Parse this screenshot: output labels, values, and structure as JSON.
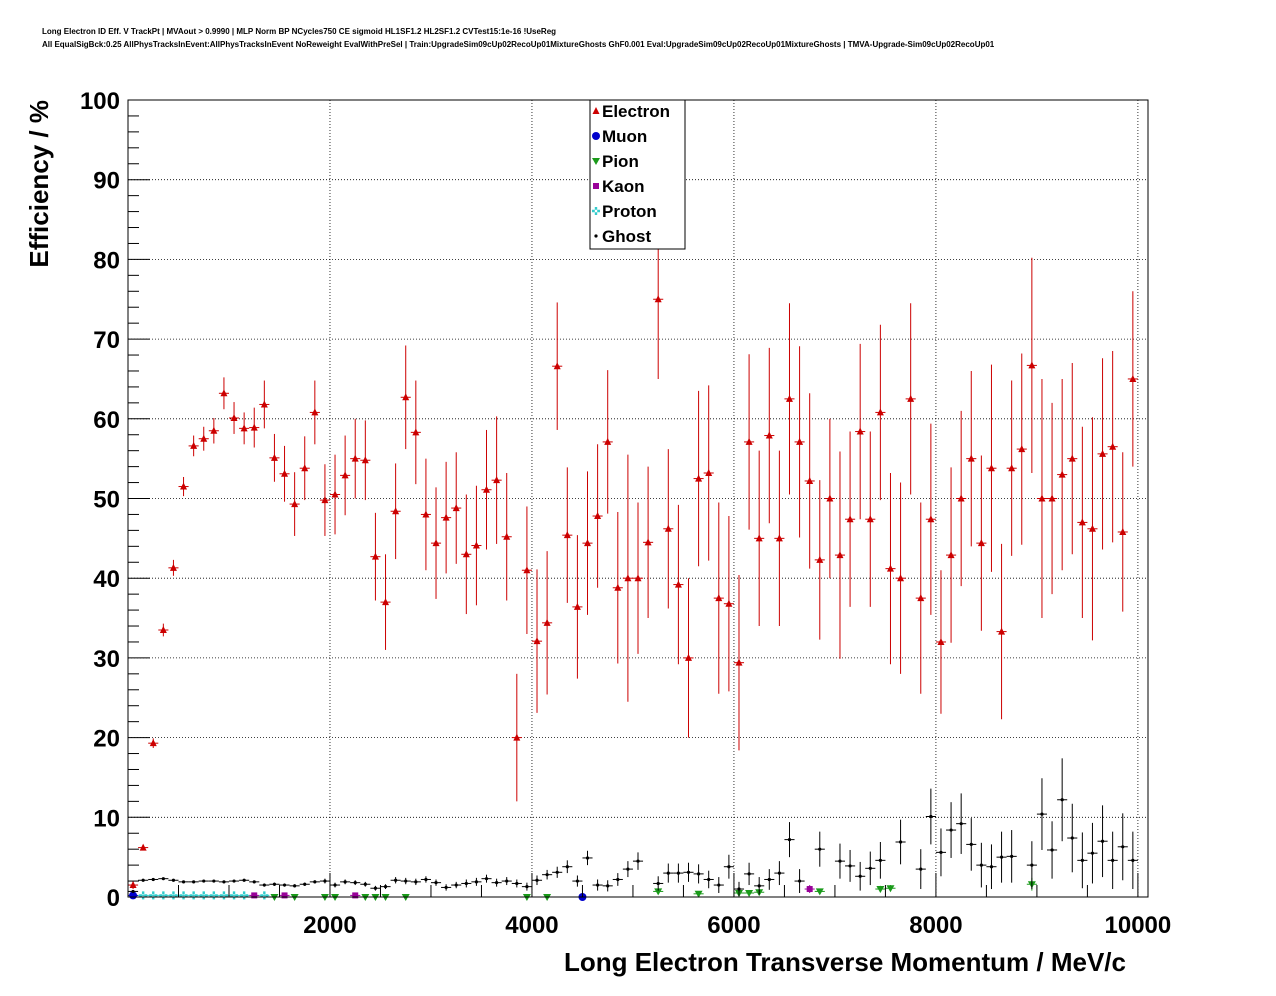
{
  "chart_data": {
    "type": "scatter",
    "title": "Long Electron ID Eff. V TrackPt | MVAout > 0.9990 | MLP Norm BP NCycles750 CE sigmoid HL1SF1.2 HL2SF1.2 CVTest15:1e-16 !UseReg",
    "subtitle": "All EqualSigBck:0.25 AllPhysTracksInEvent:AllPhysTracksInEvent NoReweight EvalWithPreSel | Train:UpgradeSim09cUp02RecoUp01MixtureGhosts GhF0.001 Eval:UpgradeSim09cUp02RecoUp01MixtureGhosts | TMVA-Upgrade-Sim09cUp02RecoUp01",
    "xlabel": "Long Electron Transverse Momentum / MeV/c",
    "ylabel": "Efficiency / %",
    "xlim": [
      0,
      10100
    ],
    "ylim": [
      0,
      100
    ],
    "x_ticks": [
      "2000",
      "4000",
      "6000",
      "8000",
      "10000"
    ],
    "y_ticks": [
      "0",
      "10",
      "20",
      "30",
      "40",
      "50",
      "60",
      "70",
      "80",
      "90",
      "100"
    ],
    "grid": true,
    "legend_position": "top-center",
    "bin_halfwidth": 50,
    "series": [
      {
        "name": "Electron",
        "color": "#cc0000",
        "marker": "triangle-up",
        "points": [
          [
            50,
            1.5,
            0.5
          ],
          [
            150,
            6.2,
            0.3
          ],
          [
            250,
            19.3,
            0.6
          ],
          [
            350,
            33.5,
            0.8
          ],
          [
            450,
            41.3,
            1.0
          ],
          [
            550,
            51.5,
            1.2
          ],
          [
            650,
            56.6,
            1.3
          ],
          [
            750,
            57.5,
            1.5
          ],
          [
            850,
            58.5,
            1.6
          ],
          [
            950,
            63.2,
            2.0
          ],
          [
            1050,
            60.1,
            2.0
          ],
          [
            1150,
            58.8,
            2.0
          ],
          [
            1250,
            58.9,
            2.5
          ],
          [
            1350,
            61.8,
            3.0
          ],
          [
            1450,
            55.1,
            3.0
          ],
          [
            1550,
            53.1,
            3.5
          ],
          [
            1650,
            49.3,
            4.0
          ],
          [
            1750,
            53.8,
            4.0
          ],
          [
            1850,
            60.8,
            4.0
          ],
          [
            1950,
            49.8,
            4.5
          ],
          [
            2050,
            50.5,
            5.0
          ],
          [
            2150,
            52.9,
            5.0
          ],
          [
            2250,
            55.0,
            5.0
          ],
          [
            2350,
            54.8,
            5.0
          ],
          [
            2450,
            42.7,
            5.5
          ],
          [
            2550,
            37.0,
            6.0
          ],
          [
            2650,
            48.4,
            6.0
          ],
          [
            2750,
            62.7,
            6.5
          ],
          [
            2850,
            58.3,
            6.5
          ],
          [
            2950,
            48.0,
            7.0
          ],
          [
            3050,
            44.4,
            7.0
          ],
          [
            3150,
            47.6,
            7.0
          ],
          [
            3250,
            48.8,
            7.0
          ],
          [
            3350,
            43.0,
            7.5
          ],
          [
            3450,
            44.1,
            7.5
          ],
          [
            3550,
            51.1,
            7.5
          ],
          [
            3650,
            52.3,
            8.0
          ],
          [
            3750,
            45.2,
            8.0
          ],
          [
            3850,
            20.0,
            8.0
          ],
          [
            3950,
            41.0,
            8.0
          ],
          [
            4050,
            32.1,
            9.0
          ],
          [
            4150,
            34.4,
            9.0
          ],
          [
            4250,
            66.6,
            8.0
          ],
          [
            4350,
            45.4,
            8.5
          ],
          [
            4450,
            36.4,
            9.0
          ],
          [
            4550,
            44.4,
            9.0
          ],
          [
            4650,
            47.8,
            9.0
          ],
          [
            4750,
            57.1,
            9.0
          ],
          [
            4850,
            38.8,
            9.5
          ],
          [
            4950,
            40.0,
            15.5
          ],
          [
            5050,
            40.0,
            9.5
          ],
          [
            5150,
            44.5,
            9.5
          ],
          [
            5250,
            75.0,
            10.0
          ],
          [
            5350,
            46.2,
            10.0
          ],
          [
            5450,
            39.2,
            10.0
          ],
          [
            5550,
            30.0,
            10.0
          ],
          [
            5650,
            52.5,
            11.0
          ],
          [
            5750,
            53.2,
            11.0
          ],
          [
            5850,
            37.5,
            12.0
          ],
          [
            5950,
            36.8,
            11.0
          ],
          [
            6050,
            29.4,
            11.0
          ],
          [
            6150,
            57.1,
            11.0
          ],
          [
            6250,
            45.0,
            11.0
          ],
          [
            6350,
            57.9,
            11.0
          ],
          [
            6450,
            45.0,
            11.0
          ],
          [
            6550,
            62.5,
            12.0
          ],
          [
            6650,
            57.1,
            12.0
          ],
          [
            6750,
            52.2,
            11.0
          ],
          [
            6850,
            42.3,
            10.0
          ],
          [
            6950,
            50.0,
            10.0
          ],
          [
            7050,
            42.9,
            13.0
          ],
          [
            7150,
            47.4,
            11.0
          ],
          [
            7250,
            58.4,
            11.0
          ],
          [
            7350,
            47.4,
            11.0
          ],
          [
            7450,
            60.8,
            11.0
          ],
          [
            7550,
            41.2,
            12.0
          ],
          [
            7650,
            40.0,
            12.0
          ],
          [
            7750,
            62.5,
            12.0
          ],
          [
            7850,
            37.5,
            12.0
          ],
          [
            7950,
            47.4,
            12.0
          ],
          [
            8050,
            32.0,
            9.0
          ],
          [
            8150,
            42.9,
            11.0
          ],
          [
            8250,
            50.0,
            11.0
          ],
          [
            8350,
            55.0,
            11.0
          ],
          [
            8450,
            44.4,
            11.0
          ],
          [
            8550,
            53.8,
            13.0
          ],
          [
            8650,
            33.3,
            11.0
          ],
          [
            8750,
            53.8,
            11.0
          ],
          [
            8850,
            56.2,
            12.0
          ],
          [
            8950,
            66.7,
            13.5
          ],
          [
            9050,
            50.0,
            15.0
          ],
          [
            9150,
            50.0,
            12.0
          ],
          [
            9250,
            53.0,
            12.0
          ],
          [
            9350,
            55.0,
            12.0
          ],
          [
            9450,
            47.0,
            12.0
          ],
          [
            9550,
            46.2,
            14.0
          ],
          [
            9650,
            55.6,
            12.0
          ],
          [
            9750,
            56.5,
            12.0
          ],
          [
            9850,
            45.8,
            10.0
          ],
          [
            9950,
            65.0,
            11.0
          ]
        ]
      },
      {
        "name": "Muon",
        "color": "#0000cc",
        "marker": "circle",
        "points": [
          [
            50,
            0.2,
            0.1
          ],
          [
            4500,
            0,
            0
          ]
        ]
      },
      {
        "name": "Pion",
        "color": "#1a9a1a",
        "marker": "triangle-down",
        "points": [
          [
            1450,
            0,
            0
          ],
          [
            1650,
            0,
            0
          ],
          [
            1950,
            0,
            0
          ],
          [
            2050,
            0,
            0
          ],
          [
            2350,
            0,
            0
          ],
          [
            2450,
            0,
            0
          ],
          [
            2550,
            0,
            0
          ],
          [
            2750,
            0,
            0
          ],
          [
            3950,
            0,
            0
          ],
          [
            4150,
            0,
            0
          ],
          [
            5250,
            0.7,
            0.3
          ],
          [
            5650,
            0.4,
            0.2
          ],
          [
            6050,
            0.5,
            0.2
          ],
          [
            6150,
            0.5,
            0.2
          ],
          [
            6250,
            0.6,
            0.2
          ],
          [
            6850,
            0.7,
            0.3
          ],
          [
            7450,
            1.0,
            0.4
          ],
          [
            7550,
            1.1,
            0.4
          ],
          [
            8950,
            1.6,
            0.8
          ]
        ]
      },
      {
        "name": "Kaon",
        "color": "#990099",
        "marker": "square",
        "points": [
          [
            1250,
            0.2,
            0.1
          ],
          [
            1550,
            0.2,
            0.1
          ],
          [
            2250,
            0.2,
            0.1
          ],
          [
            6750,
            1.0,
            0.5
          ]
        ]
      },
      {
        "name": "Proton",
        "color": "#33cccc",
        "marker": "cross",
        "points": [
          [
            150,
            0.2,
            0.1
          ],
          [
            250,
            0.2,
            0.1
          ],
          [
            350,
            0.2,
            0.1
          ],
          [
            450,
            0.2,
            0.1
          ],
          [
            550,
            0.2,
            0.1
          ],
          [
            650,
            0.2,
            0.1
          ],
          [
            750,
            0.2,
            0.1
          ],
          [
            850,
            0.2,
            0.1
          ],
          [
            950,
            0.2,
            0.1
          ],
          [
            1050,
            0.2,
            0.1
          ],
          [
            1150,
            0.2,
            0.1
          ],
          [
            1350,
            0.2,
            0.1
          ]
        ]
      },
      {
        "name": "Ghost",
        "color": "#000000",
        "marker": "dot",
        "points": [
          [
            50,
            0.7,
            0.1
          ],
          [
            150,
            2.1,
            0.1
          ],
          [
            250,
            2.2,
            0.1
          ],
          [
            350,
            2.3,
            0.1
          ],
          [
            450,
            2.1,
            0.1
          ],
          [
            550,
            1.9,
            0.1
          ],
          [
            650,
            1.9,
            0.1
          ],
          [
            750,
            2.0,
            0.1
          ],
          [
            850,
            2.0,
            0.1
          ],
          [
            950,
            1.9,
            0.1
          ],
          [
            1050,
            2.0,
            0.1
          ],
          [
            1150,
            2.1,
            0.1
          ],
          [
            1250,
            1.9,
            0.1
          ],
          [
            1350,
            1.5,
            0.2
          ],
          [
            1450,
            1.6,
            0.2
          ],
          [
            1550,
            1.5,
            0.2
          ],
          [
            1650,
            1.4,
            0.2
          ],
          [
            1750,
            1.6,
            0.2
          ],
          [
            1850,
            1.9,
            0.2
          ],
          [
            1950,
            2.0,
            0.3
          ],
          [
            2050,
            1.5,
            0.3
          ],
          [
            2150,
            1.9,
            0.3
          ],
          [
            2250,
            1.8,
            0.3
          ],
          [
            2350,
            1.6,
            0.3
          ],
          [
            2450,
            1.1,
            0.3
          ],
          [
            2550,
            1.3,
            0.3
          ],
          [
            2650,
            2.1,
            0.4
          ],
          [
            2750,
            2.0,
            0.4
          ],
          [
            2850,
            1.9,
            0.4
          ],
          [
            2950,
            2.2,
            0.4
          ],
          [
            3050,
            1.8,
            0.4
          ],
          [
            3150,
            1.2,
            0.4
          ],
          [
            3250,
            1.5,
            0.4
          ],
          [
            3350,
            1.7,
            0.5
          ],
          [
            3450,
            1.9,
            0.5
          ],
          [
            3550,
            2.3,
            0.5
          ],
          [
            3650,
            1.8,
            0.5
          ],
          [
            3750,
            2.0,
            0.5
          ],
          [
            3850,
            1.7,
            0.5
          ],
          [
            3950,
            1.3,
            0.5
          ],
          [
            4050,
            2.1,
            0.6
          ],
          [
            4150,
            2.8,
            0.6
          ],
          [
            4250,
            3.1,
            0.7
          ],
          [
            4350,
            3.8,
            0.8
          ],
          [
            4450,
            2.0,
            0.7
          ],
          [
            4550,
            4.9,
            0.9
          ],
          [
            4650,
            1.5,
            0.7
          ],
          [
            4750,
            1.4,
            0.7
          ],
          [
            4850,
            2.2,
            0.8
          ],
          [
            4950,
            3.5,
            1.0
          ],
          [
            5050,
            4.5,
            1.1
          ],
          [
            5250,
            1.7,
            0.9
          ],
          [
            5350,
            3.0,
            1.2
          ],
          [
            5450,
            3.0,
            1.2
          ],
          [
            5550,
            3.1,
            1.2
          ],
          [
            5650,
            2.9,
            1.2
          ],
          [
            5750,
            2.2,
            1.1
          ],
          [
            5850,
            1.5,
            1.0
          ],
          [
            5950,
            3.8,
            1.5
          ],
          [
            6050,
            1.0,
            0.9
          ],
          [
            6150,
            2.9,
            1.4
          ],
          [
            6250,
            1.4,
            1.1
          ],
          [
            6350,
            2.2,
            1.3
          ],
          [
            6450,
            3.0,
            1.5
          ],
          [
            6550,
            7.2,
            2.2
          ],
          [
            6650,
            2.0,
            1.5
          ],
          [
            6850,
            6.0,
            2.2
          ],
          [
            7050,
            4.5,
            2.2
          ],
          [
            7150,
            3.9,
            2.0
          ],
          [
            7250,
            2.6,
            1.8
          ],
          [
            7350,
            3.6,
            2.1
          ],
          [
            7450,
            4.6,
            2.3
          ],
          [
            7650,
            6.9,
            2.8
          ],
          [
            7850,
            3.5,
            2.5
          ],
          [
            7950,
            10.1,
            3.5
          ],
          [
            8050,
            5.6,
            3.0
          ],
          [
            8150,
            8.4,
            3.5
          ],
          [
            8250,
            9.2,
            3.8
          ],
          [
            8350,
            6.6,
            3.3
          ],
          [
            8450,
            4.0,
            2.8
          ],
          [
            8550,
            3.8,
            2.8
          ],
          [
            8650,
            5.0,
            3.2
          ],
          [
            8750,
            5.1,
            3.3
          ],
          [
            8950,
            4.0,
            3.0
          ],
          [
            9050,
            10.4,
            4.5
          ],
          [
            9150,
            5.9,
            3.6
          ],
          [
            9250,
            12.2,
            5.2
          ],
          [
            9350,
            7.4,
            4.3
          ],
          [
            9450,
            4.6,
            3.5
          ],
          [
            9550,
            5.5,
            3.8
          ],
          [
            9650,
            7.0,
            4.5
          ],
          [
            9750,
            4.6,
            3.6
          ],
          [
            9850,
            6.3,
            4.2
          ],
          [
            9950,
            4.6,
            3.6
          ]
        ]
      }
    ]
  }
}
